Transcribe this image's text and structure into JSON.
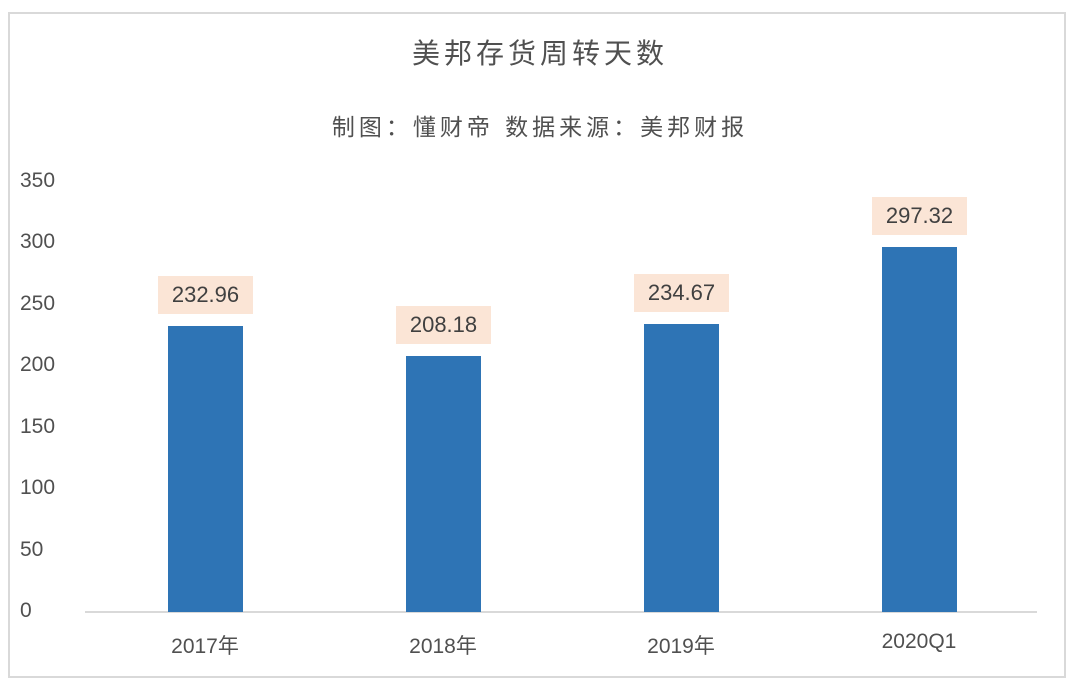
{
  "chart": {
    "title": "美邦存货周转天数",
    "subtitle": "制图：懂财帝  数据来源：美邦财报",
    "bar_color": "#2e74b5",
    "label_bg": "#fbe5d6",
    "y_ticks": [
      "350",
      "300",
      "250",
      "200",
      "150",
      "100",
      "50",
      "0"
    ],
    "categories": [
      "2017年",
      "2018年",
      "2019年",
      "2020Q1"
    ],
    "value_labels": [
      "232.96",
      "208.18",
      "234.67",
      "297.32"
    ]
  },
  "chart_data": {
    "type": "bar",
    "title": "美邦存货周转天数",
    "subtitle": "制图：懂财帝  数据来源：美邦财报",
    "categories": [
      "2017年",
      "2018年",
      "2019年",
      "2020Q1"
    ],
    "values": [
      232.96,
      208.18,
      234.67,
      297.32
    ],
    "xlabel": "",
    "ylabel": "",
    "ylim": [
      0,
      350
    ],
    "yticks": [
      0,
      50,
      100,
      150,
      200,
      250,
      300,
      350
    ],
    "grid": false,
    "legend": null,
    "data_labels": true,
    "bar_color": "#2e74b5"
  }
}
